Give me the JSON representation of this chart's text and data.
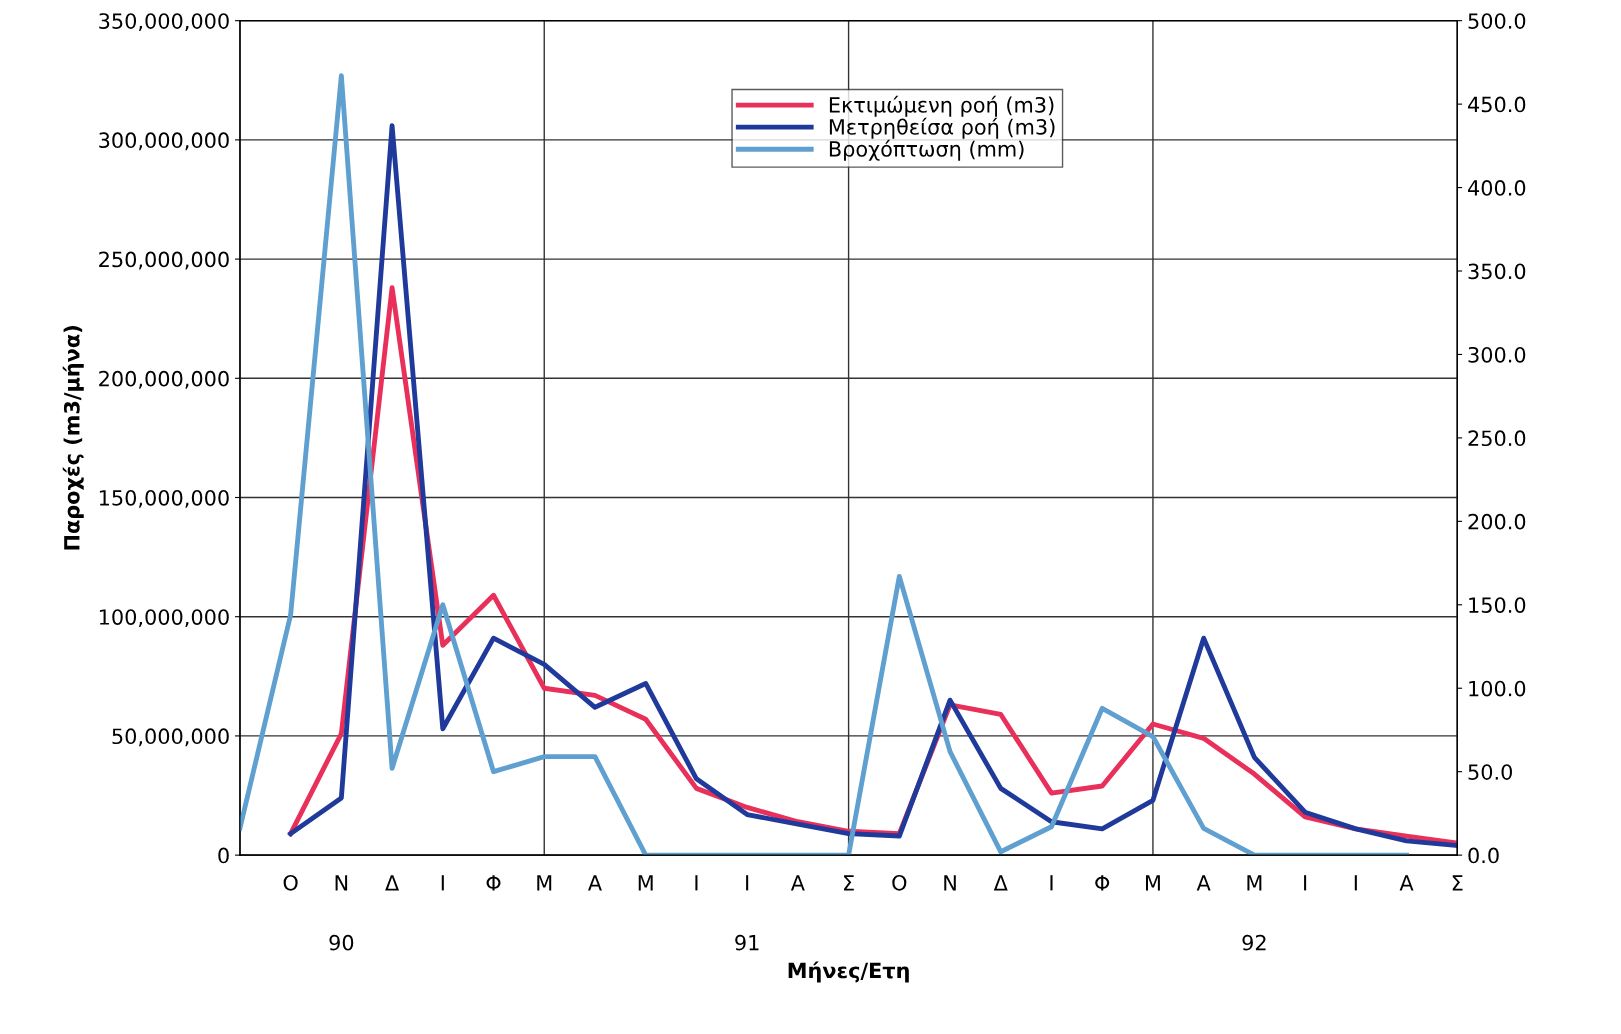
{
  "chart_data": {
    "type": "line",
    "xlabel": "Μήνες/Ετη",
    "ylabel": "Παροχές (m3/μήνα)",
    "categories": [
      null,
      "Ο",
      "Ν",
      "Δ",
      "Ι",
      "Φ",
      "Μ",
      "Α",
      "Μ",
      "Ι",
      "Ι",
      "Α",
      "Σ",
      "Ο",
      "Ν",
      "Δ",
      "Ι",
      "Φ",
      "Μ",
      "Α",
      "Μ",
      "Ι",
      "Ι",
      "Α",
      "Σ"
    ],
    "series": [
      {
        "name": "Εκτιμώμενη ροή (m3)",
        "color": "#e8305a",
        "values": [
          null,
          9000000,
          51000000,
          238000000,
          88000000,
          109000000,
          70000000,
          67000000,
          57000000,
          28000000,
          20000000,
          14000000,
          10000000,
          9000000,
          63000000,
          59000000,
          26000000,
          29000000,
          55000000,
          49000000,
          34000000,
          16000000,
          11000000,
          8000000,
          5000000
        ]
      },
      {
        "name": "Μετρηθείσα ροή (m3)",
        "color": "#1f3a9a",
        "values": [
          null,
          9000000,
          24000000,
          306000000,
          53000000,
          91000000,
          80000000,
          62000000,
          72000000,
          32000000,
          17000000,
          13000000,
          9000000,
          8000000,
          65000000,
          28000000,
          14000000,
          11000000,
          23000000,
          91000000,
          41000000,
          18000000,
          11000000,
          6000000,
          4000000
        ]
      },
      {
        "name": "Βροχόπτωση (mm)",
        "color": "#5fa0d0",
        "axis": "y2",
        "values": [
          16,
          144,
          467,
          52,
          150,
          50,
          59,
          59,
          0,
          0,
          0,
          0,
          0,
          167,
          62,
          2,
          17,
          88,
          71,
          16,
          0,
          0,
          0,
          0,
          null
        ]
      }
    ],
    "ylim": [
      0,
      350000000
    ],
    "yticks": [
      {
        "value": 0,
        "label": "0"
      },
      {
        "value": 50000000,
        "label": "50,000,000"
      },
      {
        "value": 100000000,
        "label": "100,000,000"
      },
      {
        "value": 150000000,
        "label": "150,000,000"
      },
      {
        "value": 200000000,
        "label": "200,000,000"
      },
      {
        "value": 250000000,
        "label": "250,000,000"
      },
      {
        "value": 300000000,
        "label": "300,000,000"
      },
      {
        "value": 350000000,
        "label": "350,000,000"
      }
    ],
    "y2lim": [
      0,
      500
    ],
    "y2ticks": [
      {
        "value": 0,
        "label": "0.0"
      },
      {
        "value": 50,
        "label": "50.0"
      },
      {
        "value": 100,
        "label": "100.0"
      },
      {
        "value": 150,
        "label": "150.0"
      },
      {
        "value": 200,
        "label": "200.0"
      },
      {
        "value": 250,
        "label": "250.0"
      },
      {
        "value": 300,
        "label": "300.0"
      },
      {
        "value": 350,
        "label": "350.0"
      },
      {
        "value": 400,
        "label": "400.0"
      },
      {
        "value": 450,
        "label": "450.0"
      },
      {
        "value": 500,
        "label": "500.0"
      }
    ],
    "annotations": [
      "90",
      "91",
      "92"
    ],
    "grid": true,
    "legend": "top",
    "marker": "none",
    "line_style": "solid"
  }
}
